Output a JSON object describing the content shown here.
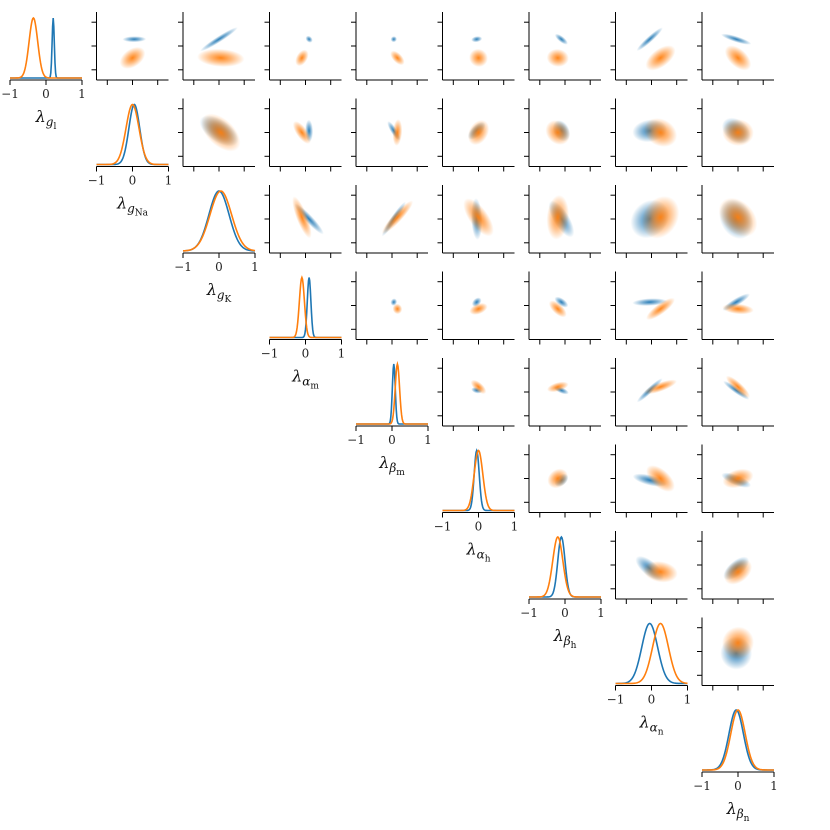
{
  "chart_data": {
    "type": "corner",
    "parameters": [
      {
        "symbol": "λ",
        "sub": "g",
        "subsub": "l"
      },
      {
        "symbol": "λ",
        "sub": "g",
        "subsub": "Na"
      },
      {
        "symbol": "λ",
        "sub": "g",
        "subsub": "K"
      },
      {
        "symbol": "λ",
        "sub": "α",
        "subsub": "m"
      },
      {
        "symbol": "λ",
        "sub": "β",
        "subsub": "m"
      },
      {
        "symbol": "λ",
        "sub": "α",
        "subsub": "h"
      },
      {
        "symbol": "λ",
        "sub": "β",
        "subsub": "h"
      },
      {
        "symbol": "λ",
        "sub": "α",
        "subsub": "n"
      },
      {
        "symbol": "λ",
        "sub": "β",
        "subsub": "n"
      }
    ],
    "xlim": [
      -1,
      1
    ],
    "ticks": [
      -1,
      0,
      1
    ],
    "tick_labels": [
      "−1",
      "0",
      "1"
    ],
    "grid": false,
    "legend": "none",
    "series": [
      {
        "color": "#1f77b4",
        "marginals": [
          {
            "mu": 0.2,
            "sd": 0.03
          },
          {
            "mu": 0.05,
            "sd": 0.15
          },
          {
            "mu": 0.0,
            "sd": 0.28
          },
          {
            "mu": 0.1,
            "sd": 0.05
          },
          {
            "mu": 0.05,
            "sd": 0.04
          },
          {
            "mu": -0.05,
            "sd": 0.07
          },
          {
            "mu": -0.1,
            "sd": 0.1
          },
          {
            "mu": -0.05,
            "sd": 0.22
          },
          {
            "mu": -0.05,
            "sd": 0.2
          }
        ]
      },
      {
        "color": "#ff7f0e",
        "marginals": [
          {
            "mu": -0.35,
            "sd": 0.12
          },
          {
            "mu": 0.0,
            "sd": 0.18
          },
          {
            "mu": 0.05,
            "sd": 0.3
          },
          {
            "mu": -0.1,
            "sd": 0.07
          },
          {
            "mu": 0.15,
            "sd": 0.06
          },
          {
            "mu": 0.0,
            "sd": 0.12
          },
          {
            "mu": -0.2,
            "sd": 0.14
          },
          {
            "mu": 0.25,
            "sd": 0.22
          },
          {
            "mu": 0.0,
            "sd": 0.2
          }
        ]
      }
    ]
  }
}
